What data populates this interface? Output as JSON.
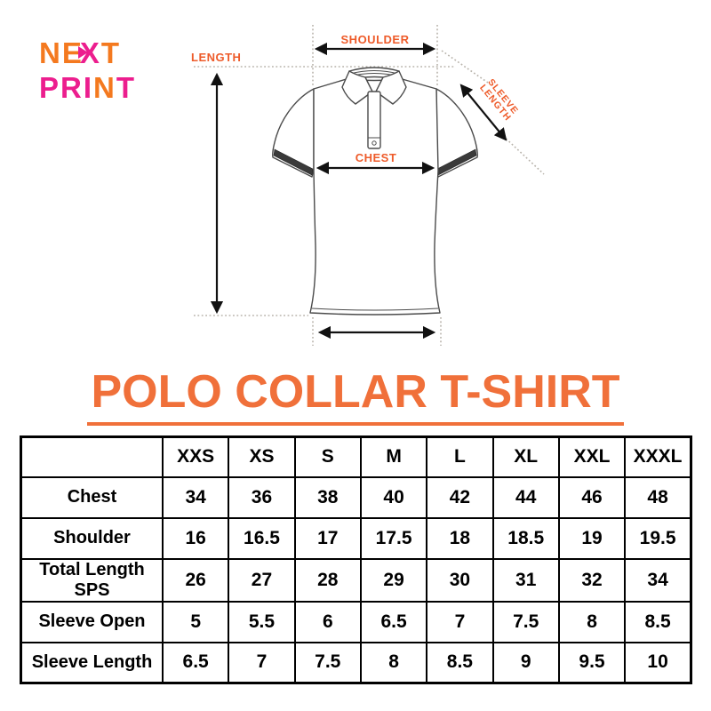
{
  "logo": {
    "colors": {
      "orange": "#F4791F",
      "magenta": "#EC1E8E"
    },
    "lines": [
      {
        "name": "logo-word-next",
        "letters": [
          {
            "ch": "N",
            "c": "orange"
          },
          {
            "ch": "E",
            "c": "orange"
          },
          {
            "arrow": true,
            "c": "magenta"
          },
          {
            "ch": "X",
            "c": "magenta"
          },
          {
            "ch": "T",
            "c": "orange"
          }
        ]
      },
      {
        "name": "logo-word-print",
        "letters": [
          {
            "ch": "P",
            "c": "magenta"
          },
          {
            "ch": "R",
            "c": "magenta"
          },
          {
            "ch": "I",
            "c": "magenta"
          },
          {
            "ch": "N",
            "c": "orange"
          },
          {
            "ch": "T",
            "c": "magenta"
          }
        ]
      }
    ]
  },
  "diagram": {
    "label_color": "#EE5B2A",
    "labels": {
      "length": "LENGTH",
      "shoulder": "SHOULDER",
      "chest": "CHEST",
      "sleeve_line1": "SLEEVE",
      "sleeve_line2": "LENGTH"
    }
  },
  "title": {
    "text": "POLO COLLAR T-SHIRT",
    "color": "#F0703A"
  },
  "table": {
    "columns": [
      "XXS",
      "XS",
      "S",
      "M",
      "L",
      "XL",
      "XXL",
      "XXXL"
    ],
    "rows": [
      {
        "label": "Chest",
        "values": [
          "34",
          "36",
          "38",
          "40",
          "42",
          "44",
          "46",
          "48"
        ]
      },
      {
        "label": "Shoulder",
        "values": [
          "16",
          "16.5",
          "17",
          "17.5",
          "18",
          "18.5",
          "19",
          "19.5"
        ]
      },
      {
        "label": "Total Length SPS",
        "values": [
          "26",
          "27",
          "28",
          "29",
          "30",
          "31",
          "32",
          "34"
        ]
      },
      {
        "label": "Sleeve Open",
        "values": [
          "5",
          "5.5",
          "6",
          "6.5",
          "7",
          "7.5",
          "8",
          "8.5"
        ]
      },
      {
        "label": "Sleeve Length",
        "values": [
          "6.5",
          "7",
          "7.5",
          "8",
          "8.5",
          "9",
          "9.5",
          "10"
        ]
      }
    ]
  }
}
